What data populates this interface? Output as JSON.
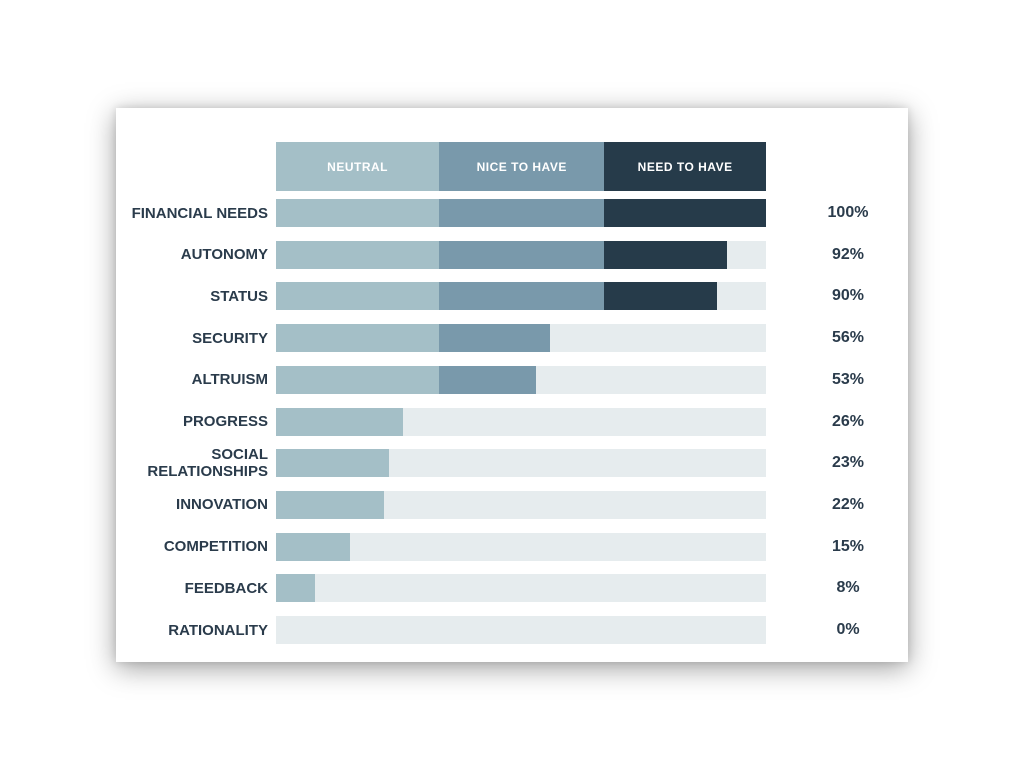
{
  "chart_data": {
    "type": "bar",
    "orientation": "horizontal",
    "stacked": true,
    "legend": [
      {
        "name": "NEUTRAL",
        "color": "#a4bfc7"
      },
      {
        "name": "NICE TO HAVE",
        "color": "#7999ab"
      },
      {
        "name": "NEED TO HAVE",
        "color": "#263b4a"
      }
    ],
    "legend_placement": "top",
    "track_color": "#e6ecee",
    "segment_breaks": [
      33.3,
      67
    ],
    "xlim": [
      0,
      100
    ],
    "categories": [
      "FINANCIAL NEEDS",
      "AUTONOMY",
      "STATUS",
      "SECURITY",
      "ALTRUISM",
      "PROGRESS",
      "SOCIAL\nRELATIONSHIPS",
      "INNOVATION",
      "COMPETITION",
      "FEEDBACK",
      "RATIONALITY"
    ],
    "values": [
      100,
      92,
      90,
      56,
      53,
      26,
      23,
      22,
      15,
      8,
      0
    ],
    "value_labels": [
      "100%",
      "92%",
      "90%",
      "56%",
      "53%",
      "26%",
      "23%",
      "22%",
      "15%",
      "8%",
      "0%"
    ]
  }
}
